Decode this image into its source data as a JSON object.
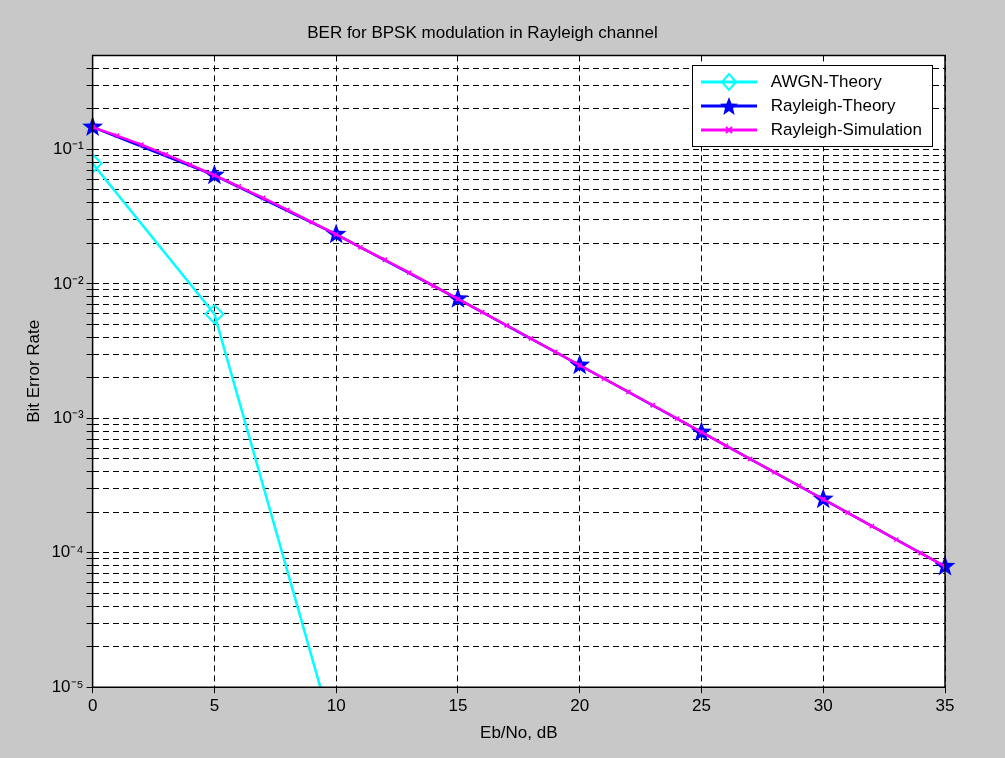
{
  "chart_data": {
    "type": "line",
    "title": "BER for BPSK modulation in Rayleigh channel",
    "xlabel": "Eb/No, dB",
    "ylabel": "Bit Error Rate",
    "log": "y",
    "grid": true,
    "legend": "top right",
    "line_style": "solid",
    "xlim": [
      0,
      35
    ],
    "xticks": [
      0,
      5,
      10,
      15,
      20,
      25,
      30,
      35
    ],
    "ylim": [
      1e-05,
      0.5
    ],
    "yticks": [
      {
        "value": 1e-05,
        "label": "10⁻⁵"
      },
      {
        "value": 2e-05,
        "label": null
      },
      {
        "value": 3e-05,
        "label": null
      },
      {
        "value": 4e-05,
        "label": null
      },
      {
        "value": 5e-05,
        "label": null
      },
      {
        "value": 6e-05,
        "label": null
      },
      {
        "value": 7e-05,
        "label": null
      },
      {
        "value": 8e-05,
        "label": null
      },
      {
        "value": 9e-05,
        "label": null
      },
      {
        "value": 0.0001,
        "label": "10⁻⁴"
      },
      {
        "value": 0.0002,
        "label": null
      },
      {
        "value": 0.0003,
        "label": null
      },
      {
        "value": 0.0004,
        "label": null
      },
      {
        "value": 0.0005,
        "label": null
      },
      {
        "value": 0.0006,
        "label": null
      },
      {
        "value": 0.0007,
        "label": null
      },
      {
        "value": 0.0008,
        "label": null
      },
      {
        "value": 0.0009,
        "label": null
      },
      {
        "value": 0.001,
        "label": "10⁻³"
      },
      {
        "value": 0.002,
        "label": null
      },
      {
        "value": 0.003,
        "label": null
      },
      {
        "value": 0.004,
        "label": null
      },
      {
        "value": 0.005,
        "label": null
      },
      {
        "value": 0.006,
        "label": null
      },
      {
        "value": 0.007,
        "label": null
      },
      {
        "value": 0.008,
        "label": null
      },
      {
        "value": 0.009,
        "label": null
      },
      {
        "value": 0.01,
        "label": "10⁻²"
      },
      {
        "value": 0.02,
        "label": null
      },
      {
        "value": 0.03,
        "label": null
      },
      {
        "value": 0.04,
        "label": null
      },
      {
        "value": 0.05,
        "label": null
      },
      {
        "value": 0.06,
        "label": null
      },
      {
        "value": 0.07,
        "label": null
      },
      {
        "value": 0.08,
        "label": null
      },
      {
        "value": 0.09,
        "label": null
      },
      {
        "value": 0.1,
        "label": "10⁻¹"
      },
      {
        "value": 0.2,
        "label": null
      },
      {
        "value": 0.3,
        "label": null
      },
      {
        "value": 0.4,
        "label": null
      }
    ],
    "series": [
      {
        "name": "AWGN-Theory",
        "color": "#00ffff",
        "marker": "diamond",
        "x": [
          0,
          5,
          9.35
        ],
        "values": [
          0.0786,
          0.00596,
          1e-05
        ]
      },
      {
        "name": "Rayleigh-Theory",
        "color": "#0000ff",
        "marker": "star",
        "x": [
          0,
          5,
          10,
          15,
          20,
          25,
          30,
          35
        ],
        "values": [
          0.1464,
          0.0642,
          0.0233,
          0.00772,
          0.00248,
          0.000788,
          0.00025,
          7.9e-05
        ]
      },
      {
        "name": "Rayleigh-Simulation",
        "color": "#ff00ff",
        "marker": "cross",
        "x": [
          0,
          1,
          2,
          3,
          4,
          5,
          6,
          7,
          8,
          9,
          10,
          11,
          12,
          13,
          14,
          15,
          16,
          17,
          18,
          19,
          20,
          21,
          22,
          23,
          24,
          25,
          26,
          27,
          28,
          29,
          30,
          31,
          32,
          33,
          34,
          35
        ],
        "values": [
          0.1464,
          0.1267,
          0.1085,
          0.0919,
          0.0771,
          0.0642,
          0.053,
          0.0435,
          0.0355,
          0.0288,
          0.0233,
          0.0187,
          0.0151,
          0.0121,
          0.00966,
          0.00772,
          0.00616,
          0.00491,
          0.00392,
          0.00312,
          0.00248,
          0.00197,
          0.00157,
          0.00125,
          0.000993,
          0.000788,
          0.000627,
          0.000498,
          0.000396,
          0.000315,
          0.00025,
          0.000199,
          0.000158,
          0.000125,
          9.95e-05,
          7.9e-05
        ]
      }
    ]
  }
}
